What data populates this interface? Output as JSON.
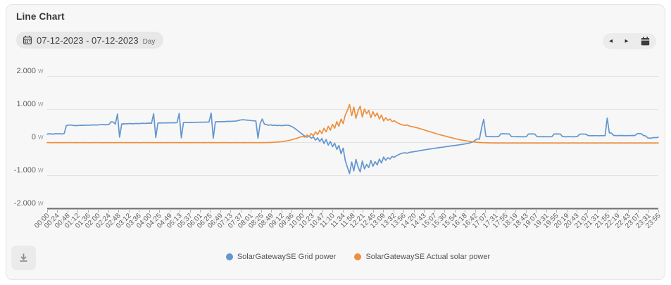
{
  "header": {
    "title": "Line Chart"
  },
  "toolbar": {
    "date_range": "07-12-2023 - 07-12-2023",
    "granularity": "Day",
    "prev_icon": "◂",
    "next_icon": "▸"
  },
  "legend": {
    "items": [
      {
        "label": "SolarGatewaySE Grid power",
        "color": "#6496cf"
      },
      {
        "label": "SolarGatewaySE Actual solar power",
        "color": "#ee8f40"
      }
    ]
  },
  "download": {
    "tooltip": ""
  },
  "chart_data": {
    "type": "line",
    "title": "",
    "xlabel": "",
    "ylabel": "",
    "y_unit": "W",
    "ylim": [
      -2000,
      2000
    ],
    "y_ticks": [
      {
        "value": 2000,
        "label": "2.000"
      },
      {
        "value": 1000,
        "label": "1.000"
      },
      {
        "value": 0,
        "label": "0"
      },
      {
        "value": -1000,
        "label": "-1.000"
      },
      {
        "value": -2000,
        "label": "-2.000"
      }
    ],
    "grid": true,
    "legend_position": "bottom",
    "x_step_minutes": 5,
    "x_total_minutes": 1435,
    "x_tick_labels": [
      "00:00",
      "00:24",
      "00:48",
      "01:12",
      "01:36",
      "02:00",
      "02:24",
      "02:48",
      "03:12",
      "03:36",
      "04:00",
      "04:25",
      "04:49",
      "05:13",
      "05:37",
      "06:01",
      "06:25",
      "06:49",
      "07:13",
      "07:37",
      "08:01",
      "08:25",
      "08:49",
      "09:12",
      "09:36",
      "10:00",
      "10:23",
      "10:47",
      "11:10",
      "11:34",
      "11:58",
      "12:21",
      "12:45",
      "13:09",
      "13:32",
      "13:56",
      "14:20",
      "14:43",
      "15:07",
      "15:30",
      "15:54",
      "16:18",
      "16:42",
      "17:07",
      "17:31",
      "17:55",
      "18:19",
      "18:43",
      "19:07",
      "19:31",
      "19:55",
      "20:19",
      "20:43",
      "21:07",
      "21:31",
      "21:55",
      "22:19",
      "22:43",
      "23:07",
      "23:31",
      "23:55"
    ],
    "series": [
      {
        "name": "SolarGatewaySE Grid power",
        "color": "#6496cf",
        "values": [
          245,
          252,
          248,
          244,
          258,
          250,
          255,
          248,
          262,
          500,
          515,
          520,
          510,
          498,
          502,
          505,
          510,
          508,
          512,
          515,
          512,
          518,
          520,
          516,
          522,
          528,
          532,
          526,
          530,
          535,
          615,
          610,
          545,
          850,
          150,
          550,
          556,
          552,
          558,
          562,
          556,
          560,
          565,
          560,
          566,
          570,
          565,
          572,
          575,
          570,
          860,
          140,
          578,
          582,
          578,
          584,
          580,
          586,
          583,
          588,
          585,
          590,
          870,
          130,
          592,
          596,
          592,
          598,
          595,
          600,
          597,
          602,
          605,
          602,
          608,
          605,
          610,
          880,
          120,
          615,
          620,
          617,
          622,
          620,
          625,
          630,
          627,
          632,
          635,
          640,
          660,
          672,
          678,
          672,
          665,
          658,
          650,
          645,
          640,
          120,
          560,
          700,
          545,
          530,
          510,
          525,
          505,
          515,
          500,
          510,
          498,
          505,
          510,
          515,
          495,
          470,
          430,
          380,
          330,
          280,
          230,
          180,
          150,
          180,
          120,
          160,
          60,
          130,
          20,
          110,
          -40,
          80,
          -90,
          20,
          -140,
          -30,
          -220,
          -100,
          -350,
          -180,
          -560,
          -760,
          -950,
          -600,
          -870,
          -520,
          -750,
          -900,
          -570,
          -810,
          -670,
          -770,
          -550,
          -730,
          -590,
          -690,
          -510,
          -630,
          -450,
          -550,
          -470,
          -510,
          -430,
          -460,
          -410,
          -380,
          -350,
          -330,
          -320,
          -335,
          -310,
          -300,
          -290,
          -280,
          -270,
          -255,
          -245,
          -235,
          -225,
          -215,
          -205,
          -195,
          -185,
          -175,
          -165,
          -158,
          -150,
          -140,
          -130,
          -120,
          -112,
          -104,
          -96,
          -86,
          -76,
          -66,
          -56,
          -44,
          -30,
          -12,
          10,
          60,
          100,
          90,
          430,
          690,
          180,
          170,
          165,
          168,
          164,
          168,
          166,
          250,
          255,
          252,
          250,
          248,
          170,
          166,
          164,
          168,
          165,
          163,
          162,
          167,
          245,
          250,
          248,
          246,
          168,
          165,
          163,
          167,
          165,
          162,
          166,
          164,
          245,
          250,
          247,
          245,
          168,
          165,
          162,
          167,
          164,
          162,
          165,
          168,
          240,
          246,
          243,
          240,
          200,
          196,
          194,
          198,
          196,
          193,
          197,
          195,
          200,
          730,
          280,
          275,
          205,
          200,
          197,
          202,
          200,
          197,
          195,
          200,
          198,
          202,
          200,
          255,
          260,
          255,
          200,
          190,
          130,
          120,
          128,
          140,
          135,
          150
        ]
      },
      {
        "name": "SolarGatewaySE Actual solar power",
        "color": "#ee8f40",
        "values": [
          -15,
          -14,
          -16,
          -15,
          -13,
          -16,
          -14,
          -15,
          -16,
          -13,
          -15,
          -14,
          -15,
          -14,
          -16,
          -15,
          -13,
          -16,
          -14,
          -15,
          -16,
          -13,
          -15,
          -14,
          -15,
          -14,
          -16,
          -15,
          -13,
          -16,
          -14,
          -15,
          -16,
          -13,
          -15,
          -14,
          -15,
          -14,
          -16,
          -15,
          -13,
          -16,
          -14,
          -15,
          -16,
          -13,
          -15,
          -14,
          -15,
          -14,
          -16,
          -15,
          -13,
          -16,
          -14,
          -15,
          -16,
          -13,
          -15,
          -14,
          -15,
          -14,
          -16,
          -15,
          -13,
          -16,
          -14,
          -15,
          -16,
          -13,
          -15,
          -14,
          -15,
          -14,
          -16,
          -15,
          -13,
          -16,
          -14,
          -15,
          -16,
          -13,
          -15,
          -14,
          -15,
          -14,
          -16,
          -15,
          -13,
          -16,
          -14,
          -15,
          -16,
          -13,
          -15,
          -14,
          -15,
          -14,
          -16,
          -15,
          -13,
          -15,
          -14,
          -12,
          -10,
          -8,
          -5,
          -2,
          2,
          8,
          15,
          24,
          34,
          46,
          60,
          76,
          94,
          114,
          135,
          155,
          175,
          150,
          220,
          170,
          260,
          190,
          310,
          230,
          360,
          260,
          420,
          310,
          480,
          360,
          540,
          420,
          620,
          480,
          700,
          560,
          820,
          960,
          1140,
          800,
          1060,
          720,
          950,
          1090,
          760,
          1000,
          860,
          960,
          740,
          920,
          780,
          880,
          700,
          820,
          640,
          740,
          660,
          700,
          620,
          650,
          600,
          570,
          540,
          520,
          505,
          520,
          490,
          475,
          460,
          445,
          430,
          410,
          390,
          370,
          350,
          330,
          310,
          290,
          270,
          250,
          230,
          215,
          200,
          182,
          165,
          148,
          132,
          116,
          100,
          86,
          72,
          60,
          48,
          38,
          28,
          18,
          10,
          2,
          -5,
          -10,
          -14,
          -17,
          -19,
          -21,
          -22,
          -23,
          -24,
          -24,
          -25,
          -25,
          -24,
          -25,
          -25,
          -26,
          -25,
          -24,
          -25,
          -26,
          -25,
          -24,
          -25,
          -25,
          -26,
          -25,
          -24,
          -25,
          -26,
          -25,
          -25,
          -24,
          -25,
          -26,
          -25,
          -24,
          -25,
          -25,
          -26,
          -25,
          -24,
          -25,
          -25,
          -26,
          -25,
          -24,
          -25,
          -26,
          -25,
          -24,
          -25,
          -25,
          -26,
          -25,
          -24,
          -25,
          -26,
          -25,
          -24,
          -25,
          -25,
          -26,
          -25,
          -24,
          -25,
          -26,
          -25,
          -24,
          -25,
          -25,
          -26,
          -25,
          -24,
          -25,
          -26,
          -25,
          -24,
          -25,
          -25,
          -26,
          -25,
          -24,
          -25,
          -26,
          -25,
          -25
        ]
      }
    ]
  }
}
